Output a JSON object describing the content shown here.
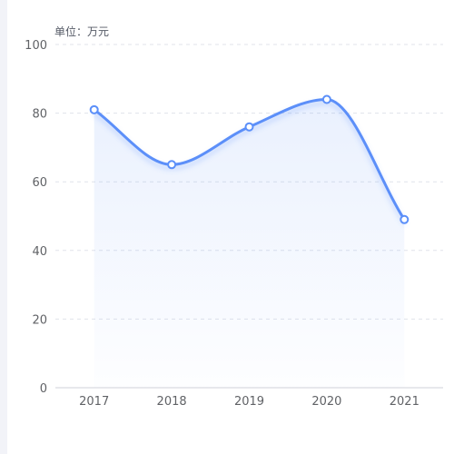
{
  "unit_label": "单位：万元",
  "colors": {
    "line": "#5b8ff9",
    "grid": "#e0e3ea",
    "axis": "#cfd2d8",
    "tick_text": "#606266"
  },
  "chart_data": {
    "type": "area",
    "categories": [
      "2017",
      "2018",
      "2019",
      "2020",
      "2021"
    ],
    "series": [
      {
        "values": [
          81,
          65,
          76,
          84,
          49
        ]
      }
    ],
    "ylim": [
      0,
      100
    ],
    "yticks": [
      0,
      20,
      40,
      60,
      80,
      100
    ],
    "grid": "horizontal-dashed",
    "smooth": true,
    "title": "",
    "xlabel": "",
    "ylabel": ""
  }
}
